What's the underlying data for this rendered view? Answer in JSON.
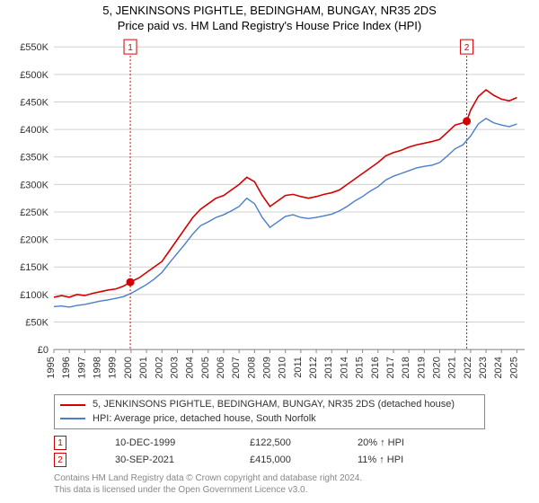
{
  "title": "5, JENKINSONS PIGHTLE, BEDINGHAM, BUNGAY, NR35 2DS",
  "subtitle": "Price paid vs. HM Land Registry's House Price Index (HPI)",
  "chart": {
    "type": "line",
    "background_color": "#ffffff",
    "grid_color": "#d0d0d0",
    "axis_color": "#888888",
    "x_years": [
      1995,
      1996,
      1997,
      1998,
      1999,
      2000,
      2001,
      2002,
      2003,
      2004,
      2005,
      2006,
      2007,
      2008,
      2009,
      2010,
      2011,
      2012,
      2013,
      2014,
      2015,
      2016,
      2017,
      2018,
      2019,
      2020,
      2021,
      2022,
      2023,
      2024,
      2025
    ],
    "x_range": [
      1995,
      2025.5
    ],
    "y_ticks": [
      0,
      50000,
      100000,
      150000,
      200000,
      250000,
      300000,
      350000,
      400000,
      450000,
      500000,
      550000
    ],
    "y_tick_labels": [
      "£0",
      "£50K",
      "£100K",
      "£150K",
      "£200K",
      "£250K",
      "£300K",
      "£350K",
      "£400K",
      "£450K",
      "£500K",
      "£550K"
    ],
    "y_range": [
      0,
      560000
    ],
    "label_fontsize": 11,
    "series": [
      {
        "name": "price-paid",
        "color": "#d40000",
        "width": 1.6,
        "data": [
          [
            1995.0,
            95000
          ],
          [
            1995.5,
            98000
          ],
          [
            1996.0,
            95000
          ],
          [
            1996.5,
            100000
          ],
          [
            1997.0,
            98000
          ],
          [
            1997.5,
            102000
          ],
          [
            1998.0,
            105000
          ],
          [
            1998.5,
            108000
          ],
          [
            1999.0,
            110000
          ],
          [
            1999.5,
            115000
          ],
          [
            1999.95,
            122500
          ],
          [
            2000.5,
            130000
          ],
          [
            2001.0,
            140000
          ],
          [
            2001.5,
            150000
          ],
          [
            2002.0,
            160000
          ],
          [
            2002.5,
            180000
          ],
          [
            2003.0,
            200000
          ],
          [
            2003.5,
            220000
          ],
          [
            2004.0,
            240000
          ],
          [
            2004.5,
            255000
          ],
          [
            2005.0,
            265000
          ],
          [
            2005.5,
            275000
          ],
          [
            2006.0,
            280000
          ],
          [
            2006.5,
            290000
          ],
          [
            2007.0,
            300000
          ],
          [
            2007.5,
            313000
          ],
          [
            2008.0,
            305000
          ],
          [
            2008.5,
            280000
          ],
          [
            2009.0,
            260000
          ],
          [
            2009.5,
            270000
          ],
          [
            2010.0,
            280000
          ],
          [
            2010.5,
            282000
          ],
          [
            2011.0,
            278000
          ],
          [
            2011.5,
            275000
          ],
          [
            2012.0,
            278000
          ],
          [
            2012.5,
            282000
          ],
          [
            2013.0,
            285000
          ],
          [
            2013.5,
            290000
          ],
          [
            2014.0,
            300000
          ],
          [
            2014.5,
            310000
          ],
          [
            2015.0,
            320000
          ],
          [
            2015.5,
            330000
          ],
          [
            2016.0,
            340000
          ],
          [
            2016.5,
            352000
          ],
          [
            2017.0,
            358000
          ],
          [
            2017.5,
            362000
          ],
          [
            2018.0,
            368000
          ],
          [
            2018.5,
            372000
          ],
          [
            2019.0,
            375000
          ],
          [
            2019.5,
            378000
          ],
          [
            2020.0,
            382000
          ],
          [
            2020.5,
            395000
          ],
          [
            2021.0,
            408000
          ],
          [
            2021.5,
            412000
          ],
          [
            2021.75,
            415000
          ],
          [
            2022.0,
            435000
          ],
          [
            2022.5,
            460000
          ],
          [
            2023.0,
            472000
          ],
          [
            2023.5,
            462000
          ],
          [
            2024.0,
            455000
          ],
          [
            2024.5,
            452000
          ],
          [
            2025.0,
            458000
          ]
        ]
      },
      {
        "name": "hpi",
        "color": "#4a7ec8",
        "width": 1.4,
        "data": [
          [
            1995.0,
            78000
          ],
          [
            1995.5,
            79000
          ],
          [
            1996.0,
            77000
          ],
          [
            1996.5,
            80000
          ],
          [
            1997.0,
            82000
          ],
          [
            1997.5,
            85000
          ],
          [
            1998.0,
            88000
          ],
          [
            1998.5,
            90000
          ],
          [
            1999.0,
            93000
          ],
          [
            1999.5,
            96000
          ],
          [
            2000.0,
            102000
          ],
          [
            2000.5,
            110000
          ],
          [
            2001.0,
            118000
          ],
          [
            2001.5,
            128000
          ],
          [
            2002.0,
            140000
          ],
          [
            2002.5,
            158000
          ],
          [
            2003.0,
            175000
          ],
          [
            2003.5,
            192000
          ],
          [
            2004.0,
            210000
          ],
          [
            2004.5,
            225000
          ],
          [
            2005.0,
            232000
          ],
          [
            2005.5,
            240000
          ],
          [
            2006.0,
            245000
          ],
          [
            2006.5,
            252000
          ],
          [
            2007.0,
            260000
          ],
          [
            2007.5,
            275000
          ],
          [
            2008.0,
            265000
          ],
          [
            2008.5,
            240000
          ],
          [
            2009.0,
            222000
          ],
          [
            2009.5,
            232000
          ],
          [
            2010.0,
            242000
          ],
          [
            2010.5,
            245000
          ],
          [
            2011.0,
            240000
          ],
          [
            2011.5,
            238000
          ],
          [
            2012.0,
            240000
          ],
          [
            2012.5,
            243000
          ],
          [
            2013.0,
            246000
          ],
          [
            2013.5,
            252000
          ],
          [
            2014.0,
            260000
          ],
          [
            2014.5,
            270000
          ],
          [
            2015.0,
            278000
          ],
          [
            2015.5,
            288000
          ],
          [
            2016.0,
            296000
          ],
          [
            2016.5,
            308000
          ],
          [
            2017.0,
            315000
          ],
          [
            2017.5,
            320000
          ],
          [
            2018.0,
            325000
          ],
          [
            2018.5,
            330000
          ],
          [
            2019.0,
            333000
          ],
          [
            2019.5,
            335000
          ],
          [
            2020.0,
            340000
          ],
          [
            2020.5,
            352000
          ],
          [
            2021.0,
            365000
          ],
          [
            2021.5,
            372000
          ],
          [
            2022.0,
            388000
          ],
          [
            2022.5,
            410000
          ],
          [
            2023.0,
            420000
          ],
          [
            2023.5,
            412000
          ],
          [
            2024.0,
            408000
          ],
          [
            2024.5,
            405000
          ],
          [
            2025.0,
            410000
          ]
        ]
      }
    ],
    "markers": [
      {
        "id": "1",
        "x": 1999.95,
        "y": 122500,
        "color": "#d40000"
      },
      {
        "id": "2",
        "x": 2021.75,
        "y": 415000,
        "color": "#d40000"
      }
    ],
    "marker_line_color": "#d40000",
    "marker_box_border": "#d40000"
  },
  "legend": {
    "items": [
      {
        "color": "#d40000",
        "label": "5, JENKINSONS PIGHTLE, BEDINGHAM, BUNGAY, NR35 2DS (detached house)"
      },
      {
        "color": "#4a7ec8",
        "label": "HPI: Average price, detached house, South Norfolk"
      }
    ]
  },
  "events": [
    {
      "id": "1",
      "date": "10-DEC-1999",
      "price": "£122,500",
      "delta": "20% ↑ HPI"
    },
    {
      "id": "2",
      "date": "30-SEP-2021",
      "price": "£415,000",
      "delta": "11% ↑ HPI"
    }
  ],
  "footer": {
    "line1": "Contains HM Land Registry data © Crown copyright and database right 2024.",
    "line2": "This data is licensed under the Open Government Licence v3.0."
  }
}
